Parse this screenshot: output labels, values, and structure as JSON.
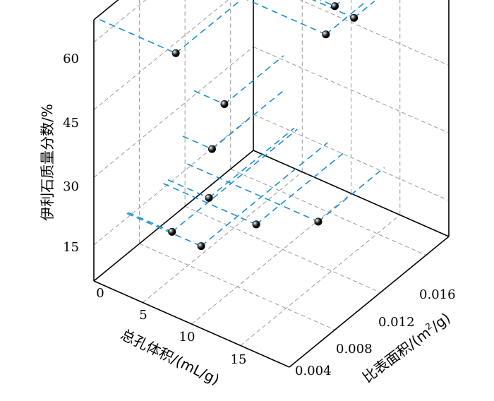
{
  "chart_data": {
    "type": "scatter",
    "subtype": "3d-scatter",
    "title": "",
    "xlabel": "总孔体积/(mL/g)",
    "ylabel_part1": "比表面积/(m",
    "ylabel_sup": "2",
    "ylabel_part2": "/g)",
    "zlabel": "伊利石质量分数/%",
    "xlim": [
      0,
      20
    ],
    "ylim": [
      0.004,
      0.018
    ],
    "zlim": [
      7,
      65
    ],
    "x_ticks": [
      "0",
      "5",
      "10",
      "15"
    ],
    "x_tick_values": [
      0,
      5,
      10,
      15
    ],
    "y_ticks": [
      "0.004",
      "0.008",
      "0.012",
      "0.016"
    ],
    "y_tick_values": [
      0.004,
      0.008,
      0.012,
      0.016
    ],
    "z_ticks": [
      "15",
      "30",
      "45",
      "60"
    ],
    "z_tick_values": [
      15,
      30,
      45,
      60
    ],
    "grid": true,
    "legend": "none",
    "colors": {
      "marker": "#000000",
      "projection": "#1a8fd0",
      "grid": "#999999",
      "frame": "#000000"
    },
    "points": [
      {
        "x": 7.8,
        "y": 0.0045,
        "z": 64
      },
      {
        "x": 10.9,
        "y": 0.0158,
        "z": 54
      },
      {
        "x": 12.4,
        "y": 0.0162,
        "z": 52
      },
      {
        "x": 11.5,
        "y": 0.0145,
        "z": 51
      },
      {
        "x": 3.1,
        "y": 0.0128,
        "z": 31
      },
      {
        "x": 3.0,
        "y": 0.0118,
        "z": 23
      },
      {
        "x": 4.5,
        "y": 0.007,
        "z": 16
      },
      {
        "x": 7.6,
        "y": 0.0069,
        "z": 16
      },
      {
        "x": 9.5,
        "y": 0.0101,
        "z": 16
      },
      {
        "x": 13.4,
        "y": 0.0122,
        "z": 16
      },
      {
        "x": 4.2,
        "y": 0.0105,
        "z": 16
      }
    ]
  }
}
